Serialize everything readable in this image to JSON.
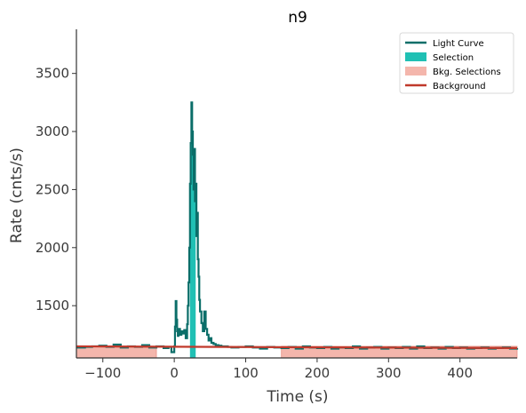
{
  "chart_data": {
    "type": "line",
    "title": "n9",
    "xlabel": "Time (s)",
    "ylabel": "Rate (cnts/s)",
    "xlim": [
      -137,
      480
    ],
    "ylim": [
      1050,
      3880
    ],
    "xticks": [
      -100,
      0,
      100,
      200,
      300,
      400
    ],
    "xtick_labels": [
      "−100",
      "0",
      "100",
      "200",
      "300",
      "400"
    ],
    "yticks": [
      1500,
      2000,
      2500,
      3000,
      3500
    ],
    "ytick_labels": [
      "1500",
      "2000",
      "2500",
      "3000",
      "3500"
    ],
    "grid": false,
    "legend_position": "top-right",
    "colors": {
      "light_curve": "#0b6e69",
      "selection": "#20c0b4",
      "bkg_selection": "#f4b6ac",
      "bkg_selection_edge": "#e89084",
      "background": "#c0392b"
    },
    "legend": [
      {
        "label": "Light Curve",
        "kind": "line",
        "color": "#0b6e69"
      },
      {
        "label": "Selection",
        "kind": "patch",
        "color": "#20c0b4"
      },
      {
        "label": "Bkg. Selections",
        "kind": "patch",
        "color": "#f4b6ac"
      },
      {
        "label": "Background",
        "kind": "line",
        "color": "#c0392b"
      }
    ],
    "selection": [
      22,
      30
    ],
    "bkg_selections": [
      [
        -137,
        -25
      ],
      [
        150,
        480
      ]
    ],
    "background_line": {
      "x": [
        -137,
        480
      ],
      "y": [
        1150,
        1135
      ]
    },
    "light_curve": {
      "x": [
        -137,
        -125,
        -115,
        -105,
        -95,
        -85,
        -75,
        -65,
        -55,
        -45,
        -35,
        -25,
        -15,
        -8,
        -4,
        0,
        1,
        2,
        3,
        4,
        5,
        6,
        8,
        10,
        12,
        14,
        16,
        18,
        19,
        20,
        21,
        22,
        23,
        24,
        25,
        26,
        27,
        28,
        29,
        30,
        31,
        32,
        33,
        34,
        35,
        36,
        38,
        40,
        42,
        44,
        46,
        48,
        50,
        52,
        55,
        58,
        62,
        66,
        70,
        75,
        80,
        90,
        100,
        110,
        120,
        130,
        140,
        150,
        160,
        170,
        180,
        190,
        200,
        210,
        220,
        230,
        240,
        250,
        260,
        270,
        280,
        290,
        300,
        310,
        320,
        330,
        340,
        350,
        360,
        370,
        380,
        390,
        400,
        410,
        420,
        430,
        440,
        450,
        460,
        470,
        480
      ],
      "y": [
        1140,
        1145,
        1150,
        1155,
        1145,
        1165,
        1140,
        1150,
        1145,
        1160,
        1140,
        1150,
        1135,
        1145,
        1100,
        1150,
        1320,
        1540,
        1380,
        1280,
        1240,
        1300,
        1250,
        1280,
        1260,
        1290,
        1220,
        1340,
        1500,
        1700,
        2000,
        2550,
        2900,
        3250,
        3000,
        2800,
        2500,
        2850,
        2400,
        2550,
        2100,
        2300,
        1900,
        1750,
        1550,
        1450,
        1350,
        1280,
        1450,
        1300,
        1250,
        1200,
        1220,
        1180,
        1170,
        1160,
        1155,
        1150,
        1150,
        1145,
        1140,
        1145,
        1150,
        1140,
        1130,
        1145,
        1140,
        1135,
        1145,
        1130,
        1150,
        1140,
        1135,
        1145,
        1130,
        1140,
        1135,
        1150,
        1130,
        1140,
        1145,
        1130,
        1140,
        1135,
        1145,
        1130,
        1150,
        1135,
        1140,
        1130,
        1145,
        1135,
        1140,
        1130,
        1135,
        1140,
        1130,
        1135,
        1140,
        1130,
        1135
      ]
    }
  }
}
